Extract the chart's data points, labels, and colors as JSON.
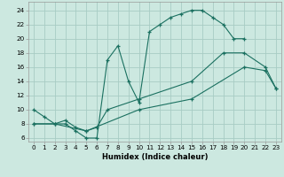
{
  "xlabel": "Humidex (Indice chaleur)",
  "background_color": "#cce8e0",
  "grid_color": "#a8ccC4",
  "line_color": "#1a7060",
  "xlim": [
    -0.5,
    23.5
  ],
  "ylim": [
    5.5,
    25.2
  ],
  "yticks": [
    6,
    8,
    10,
    12,
    14,
    16,
    18,
    20,
    22,
    24
  ],
  "line1_x": [
    0,
    1,
    2,
    3,
    4,
    5,
    6,
    7,
    8,
    9,
    10,
    11,
    12,
    13,
    14,
    15,
    16,
    17,
    18,
    19,
    20
  ],
  "line1_y": [
    10,
    9,
    8,
    8,
    7,
    6,
    6,
    17,
    19,
    14,
    11,
    21,
    22,
    23,
    23.5,
    24,
    24,
    23,
    22,
    20,
    20
  ],
  "line2_x": [
    0,
    2,
    3,
    4,
    5,
    6,
    7,
    10,
    15,
    18,
    20,
    22,
    23
  ],
  "line2_y": [
    8,
    8,
    8.5,
    7.5,
    7,
    7.5,
    10,
    11.5,
    14,
    18,
    18,
    16,
    13
  ],
  "line3_x": [
    0,
    2,
    5,
    10,
    15,
    20,
    22,
    23
  ],
  "line3_y": [
    8,
    8,
    7,
    10,
    11.5,
    16,
    15.5,
    13
  ]
}
